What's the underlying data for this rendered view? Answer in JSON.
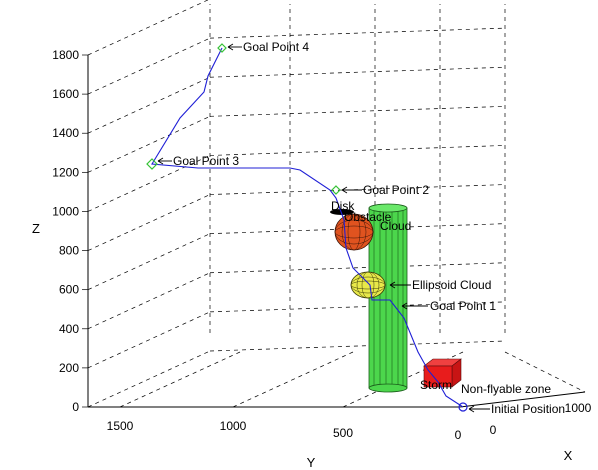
{
  "chart_data": {
    "type": "line",
    "xlabel": "X",
    "ylabel": "Y",
    "zlabel": "Z",
    "z_ticks": [
      "0",
      "200",
      "400",
      "600",
      "800",
      "1000",
      "1200",
      "1400",
      "1600",
      "1800"
    ],
    "y_ticks": [
      "1500",
      "1000",
      "500",
      "0"
    ],
    "x_ticks": [
      "0",
      "1000"
    ],
    "zlim": [
      0,
      1800
    ],
    "grid": true,
    "annotations": [
      "Goal Point 4",
      "Goal Point 3",
      "Goal Point 2",
      "Goal Point 1",
      "Initial Position",
      "Disk",
      "Obstacle",
      "Cloud",
      "Ellipsoid Cloud",
      "Storm",
      "Non-flyable zone"
    ],
    "series": [
      {
        "color": "#1f1fd6",
        "z_values": [
          50,
          230,
          380,
          520,
          620,
          760,
          880,
          960,
          1050,
          1100,
          1190,
          1210,
          1240,
          1240,
          1400,
          1520,
          1620,
          1700,
          1800
        ],
        "marker_color": "#36c236"
      }
    ],
    "colors": {
      "path": "#1f1fd6",
      "goal_marker": "#36c236",
      "initial_marker": "#1f1fd6",
      "obstacle_cylinder": "#4cd64c",
      "cloud_sphere": "#e0531f",
      "ellipsoid_cloud": "#e8e84a",
      "storm_box": "#e81c1c"
    }
  }
}
